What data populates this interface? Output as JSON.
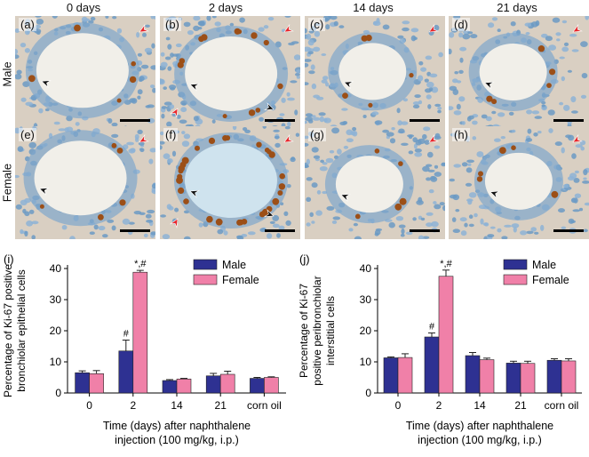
{
  "columns": [
    "0 days",
    "2 days",
    "14 days",
    "21 days"
  ],
  "rows": [
    "Male",
    "Female"
  ],
  "panels": [
    {
      "label": "(a)",
      "row": 0,
      "col": 0,
      "lumen": "large",
      "stain": "light"
    },
    {
      "label": "(b)",
      "row": 0,
      "col": 1,
      "lumen": "large",
      "stain": "medium"
    },
    {
      "label": "(c)",
      "row": 0,
      "col": 2,
      "lumen": "small",
      "stain": "light"
    },
    {
      "label": "(d)",
      "row": 0,
      "col": 3,
      "lumen": "small",
      "stain": "light"
    },
    {
      "label": "(e)",
      "row": 1,
      "col": 0,
      "lumen": "large",
      "stain": "light"
    },
    {
      "label": "(f)",
      "row": 1,
      "col": 1,
      "lumen": "large",
      "stain": "heavy"
    },
    {
      "label": "(g)",
      "row": 1,
      "col": 2,
      "lumen": "small",
      "stain": "light"
    },
    {
      "label": "(h)",
      "row": 1,
      "col": 3,
      "lumen": "small",
      "stain": "light"
    }
  ],
  "colors": {
    "male": "#2e3192",
    "female": "#f080a8",
    "arrow_red": "#e8252a",
    "arrow_black": "#111111"
  },
  "chart_data": [
    {
      "type": "bar",
      "panel_label": "(i)",
      "categories": [
        "0",
        "2",
        "14",
        "21",
        "corn oil"
      ],
      "series": [
        {
          "name": "Male",
          "values": [
            6.5,
            13.5,
            4.0,
            5.5,
            4.7
          ],
          "errors": [
            0.6,
            3.5,
            0.3,
            0.8,
            0.3
          ]
        },
        {
          "name": "Female",
          "values": [
            6.2,
            38.8,
            4.5,
            6.0,
            5.0
          ],
          "errors": [
            1.0,
            0.6,
            0.2,
            1.0,
            0.2
          ]
        }
      ],
      "annotations": [
        {
          "category": "2",
          "series": "Male",
          "text": "#"
        },
        {
          "category": "2",
          "series": "Female",
          "text": "*,#"
        }
      ],
      "xlabel_line1": "Time (days) after naphthalene",
      "xlabel_line2": "injection (100 mg/kg, i.p.)",
      "ylabel_line1": "Percentage of Ki-67 positive",
      "ylabel_line2": "bronchiolar epithelial cells",
      "ylim": [
        0,
        40
      ],
      "yticks": [
        "0",
        "10",
        "20",
        "30",
        "40"
      ],
      "legend_position": "top-right"
    },
    {
      "type": "bar",
      "panel_label": "(j)",
      "categories": [
        "0",
        "2",
        "14",
        "21",
        "corn oil"
      ],
      "series": [
        {
          "name": "Male",
          "values": [
            11.3,
            18.0,
            12.0,
            9.6,
            10.5
          ],
          "errors": [
            0.3,
            1.3,
            1.0,
            0.6,
            0.5
          ]
        },
        {
          "name": "Female",
          "values": [
            11.4,
            37.5,
            10.7,
            9.5,
            10.3
          ],
          "errors": [
            1.2,
            2.0,
            0.5,
            0.7,
            0.7
          ]
        }
      ],
      "annotations": [
        {
          "category": "2",
          "series": "Male",
          "text": "#"
        },
        {
          "category": "2",
          "series": "Female",
          "text": "*,#"
        }
      ],
      "xlabel_line1": "Time (days) after naphthalene",
      "xlabel_line2": "injection (100 mg/kg, i.p.)",
      "ylabel_line1": "Percentage of Ki-67",
      "ylabel_line2": "positive peribronchiolar",
      "ylabel_line3": "interstitial cells",
      "ylim": [
        0,
        40
      ],
      "yticks": [
        "0",
        "10",
        "20",
        "30",
        "40"
      ],
      "legend_position": "top-right"
    }
  ]
}
